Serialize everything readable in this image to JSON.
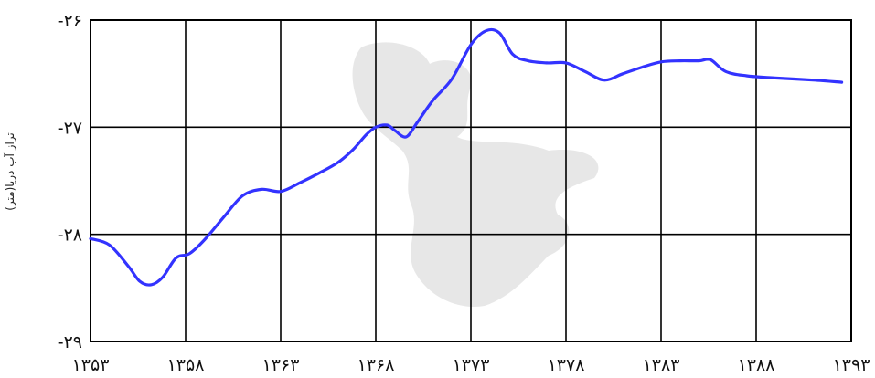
{
  "chart_data": {
    "type": "line",
    "title": "",
    "xlabel": "",
    "ylabel": "تراز آب دریا(متر)",
    "xlim": [
      1353,
      1393
    ],
    "ylim": [
      -29,
      -26
    ],
    "x_ticks": [
      {
        "value": 1353,
        "label": "۱۳۵۳"
      },
      {
        "value": 1358,
        "label": "۱۳۵۸"
      },
      {
        "value": 1363,
        "label": "۱۳۶۳"
      },
      {
        "value": 1368,
        "label": "۱۳۶۸"
      },
      {
        "value": 1373,
        "label": "۱۳۷۳"
      },
      {
        "value": 1378,
        "label": "۱۳۷۸"
      },
      {
        "value": 1383,
        "label": "۱۳۸۳"
      },
      {
        "value": 1388,
        "label": "۱۳۸۸"
      },
      {
        "value": 1393,
        "label": "۱۳۹۳"
      }
    ],
    "y_ticks": [
      {
        "value": -26,
        "label": "-۲۶"
      },
      {
        "value": -27,
        "label": "-۲۷"
      },
      {
        "value": -28,
        "label": "-۲۸"
      },
      {
        "value": -29,
        "label": "-۲۹"
      }
    ],
    "grid": true,
    "series": [
      {
        "color": "#3333ff",
        "points": [
          [
            1353.0,
            -28.04
          ],
          [
            1354.0,
            -28.1
          ],
          [
            1355.0,
            -28.3
          ],
          [
            1355.6,
            -28.44
          ],
          [
            1356.2,
            -28.47
          ],
          [
            1356.8,
            -28.4
          ],
          [
            1357.5,
            -28.22
          ],
          [
            1358.2,
            -28.18
          ],
          [
            1359.0,
            -28.05
          ],
          [
            1360.0,
            -27.84
          ],
          [
            1361.0,
            -27.64
          ],
          [
            1362.0,
            -27.58
          ],
          [
            1363.0,
            -27.6
          ],
          [
            1364.0,
            -27.52
          ],
          [
            1365.0,
            -27.43
          ],
          [
            1366.0,
            -27.33
          ],
          [
            1366.8,
            -27.21
          ],
          [
            1367.5,
            -27.07
          ],
          [
            1368.0,
            -27.0
          ],
          [
            1368.6,
            -26.98
          ],
          [
            1369.0,
            -27.03
          ],
          [
            1369.6,
            -27.09
          ],
          [
            1370.2,
            -26.95
          ],
          [
            1371.0,
            -26.75
          ],
          [
            1372.0,
            -26.55
          ],
          [
            1373.0,
            -26.23
          ],
          [
            1373.8,
            -26.1
          ],
          [
            1374.5,
            -26.12
          ],
          [
            1375.2,
            -26.32
          ],
          [
            1376.0,
            -26.38
          ],
          [
            1377.0,
            -26.4
          ],
          [
            1378.0,
            -26.4
          ],
          [
            1379.0,
            -26.48
          ],
          [
            1380.0,
            -26.56
          ],
          [
            1381.0,
            -26.5
          ],
          [
            1382.0,
            -26.44
          ],
          [
            1383.0,
            -26.39
          ],
          [
            1384.0,
            -26.38
          ],
          [
            1385.0,
            -26.38
          ],
          [
            1385.6,
            -26.37
          ],
          [
            1386.4,
            -26.48
          ],
          [
            1387.5,
            -26.52
          ],
          [
            1389.0,
            -26.54
          ],
          [
            1391.0,
            -26.56
          ],
          [
            1392.5,
            -26.58
          ]
        ]
      }
    ]
  }
}
